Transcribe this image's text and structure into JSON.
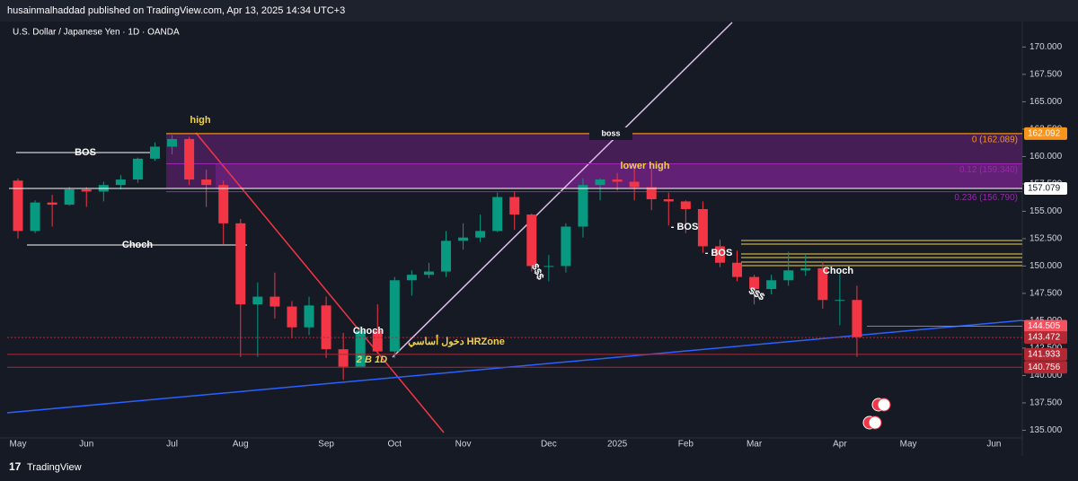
{
  "header": {
    "publisher": "husainmalhaddad published on TradingView.com, Apr 13, 2025 14:34 UTC+3"
  },
  "footer": {
    "brand": "TradingView"
  },
  "chart_data": {
    "type": "candlestick",
    "title": "U.S. Dollar / Japanese Yen · 1D · OANDA",
    "categories": [
      "May",
      null,
      null,
      null,
      "Jun",
      null,
      null,
      null,
      null,
      "Jul",
      null,
      null,
      null,
      "Aug",
      null,
      null,
      null,
      null,
      "Sep",
      null,
      null,
      null,
      "Oct",
      null,
      null,
      null,
      "Nov",
      null,
      null,
      null,
      null,
      "Dec",
      null,
      null,
      null,
      "2025",
      null,
      null,
      null,
      "Feb",
      null,
      null,
      null,
      "Mar",
      null,
      null,
      null,
      null,
      "Apr",
      null,
      null,
      null,
      "May",
      null,
      null,
      null,
      null,
      "Jun"
    ],
    "open": [
      157.8,
      153.2,
      155.8,
      155.6,
      157.0,
      156.8,
      157.4,
      157.9,
      159.8,
      160.9,
      161.6,
      157.9,
      157.4,
      153.9,
      146.5,
      147.2,
      146.3,
      144.4,
      146.4,
      142.4,
      140.8,
      144.1,
      142.2,
      148.7,
      149.2,
      149.5,
      152.3,
      152.6,
      153.2,
      156.3,
      154.7,
      150.0,
      150.0,
      153.6,
      157.4,
      157.9,
      157.7,
      157.2,
      156.1,
      155.9,
      155.2,
      151.8,
      150.3,
      149.0,
      147.9,
      148.7,
      149.6,
      149.8,
      146.9,
      146.9,
      null,
      null,
      null,
      null,
      null,
      null,
      null,
      null
    ],
    "high": [
      158.0,
      156.0,
      156.5,
      157.2,
      157.2,
      157.7,
      158.3,
      159.9,
      161.3,
      161.95,
      161.8,
      158.8,
      157.8,
      154.3,
      148.5,
      149.4,
      146.8,
      147.2,
      147.2,
      143.9,
      144.5,
      146.5,
      149.0,
      149.6,
      150.3,
      153.2,
      153.9,
      154.7,
      156.7,
      156.8,
      154.8,
      151.0,
      153.9,
      158.0,
      158.0,
      158.5,
      158.9,
      158.9,
      156.7,
      156.0,
      155.9,
      152.4,
      151.4,
      149.2,
      149.2,
      151.3,
      151.0,
      150.4,
      149.3,
      148.2,
      null,
      null,
      null,
      null,
      null,
      null,
      null,
      null
    ],
    "low": [
      152.5,
      153.0,
      153.6,
      155.5,
      155.4,
      155.9,
      157.0,
      157.6,
      159.6,
      160.2,
      157.4,
      155.4,
      152.0,
      141.7,
      141.7,
      145.2,
      143.4,
      143.7,
      141.6,
      139.6,
      141.0,
      142.2,
      141.6,
      147.3,
      148.9,
      149.0,
      151.5,
      152.2,
      153.1,
      153.3,
      149.5,
      148.6,
      149.4,
      152.6,
      156.0,
      156.9,
      156.0,
      155.1,
      153.7,
      153.0,
      151.2,
      149.9,
      148.6,
      146.5,
      147.4,
      148.2,
      149.1,
      146.1,
      144.6,
      141.7,
      null,
      null,
      null,
      null,
      null,
      null,
      null,
      null
    ],
    "close": [
      153.2,
      155.8,
      155.6,
      157.0,
      156.8,
      157.4,
      157.9,
      159.8,
      160.9,
      161.6,
      157.9,
      157.4,
      153.9,
      146.5,
      147.2,
      146.3,
      144.4,
      146.4,
      142.4,
      140.8,
      144.1,
      142.2,
      148.7,
      149.2,
      149.5,
      152.3,
      152.6,
      153.2,
      156.3,
      154.7,
      150.0,
      150.0,
      153.6,
      157.4,
      157.9,
      157.7,
      157.2,
      156.1,
      155.9,
      155.2,
      151.8,
      150.3,
      149.0,
      147.9,
      148.7,
      149.6,
      149.8,
      146.9,
      146.9,
      143.5,
      null,
      null,
      null,
      null,
      null,
      null,
      null,
      null
    ],
    "up_color": "#089981",
    "down_color": "#f23645",
    "ylim": [
      134.3,
      172
    ],
    "yticks": [
      {
        "value": 170,
        "label": "170.000"
      },
      {
        "value": 167.5,
        "label": "167.500"
      },
      {
        "value": 165,
        "label": "165.000"
      },
      {
        "value": 162.5,
        "label": "162.500"
      },
      {
        "value": 160,
        "label": "160.000"
      },
      {
        "value": 157.5,
        "label": "157.500"
      },
      {
        "value": 155,
        "label": "155.000"
      },
      {
        "value": 152.5,
        "label": "152.500"
      },
      {
        "value": 150,
        "label": "150.000"
      },
      {
        "value": 147.5,
        "label": "147.500"
      },
      {
        "value": 145,
        "label": "145.000"
      },
      {
        "value": 142.5,
        "label": "142.500"
      },
      {
        "value": 140,
        "label": "140.000"
      },
      {
        "value": 137.5,
        "label": "137.500"
      },
      {
        "value": 135,
        "label": "135.000"
      }
    ],
    "price_tags": [
      {
        "value": 162.092,
        "color": "#f7941d"
      },
      {
        "value": 157.079,
        "color": "#ffffff"
      },
      {
        "value": 144.505,
        "color": "#f7525f"
      },
      {
        "value": 143.472,
        "color": "#b22833"
      },
      {
        "value": 141.933,
        "color": "#b22833"
      },
      {
        "value": 140.756,
        "color": "#b22833"
      }
    ],
    "fib_levels": [
      {
        "value": 162.089,
        "label": "0 (162.089)",
        "color": "#f7941d"
      },
      {
        "value": 159.34,
        "label": "0.12 (159.340)",
        "color": "#9c27b0"
      },
      {
        "value": 156.79,
        "label": "0.236 (156.790)",
        "color": "#9c27b0"
      }
    ],
    "annotations": [
      "high",
      "BOS",
      "Choch",
      "boss",
      "lower high",
      "Choch",
      "- BOS",
      "- BOS",
      "Choch",
      "$$$",
      "$$$",
      "دخول أساسي HRZone",
      "2 B 1D"
    ]
  }
}
